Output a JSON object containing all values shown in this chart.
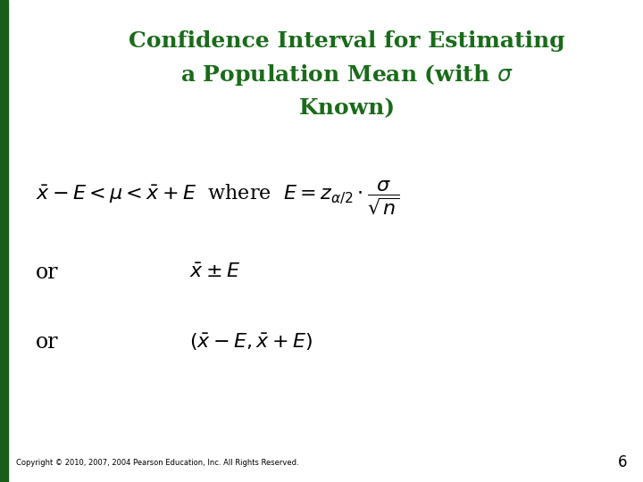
{
  "title_line1": "Confidence Interval for Estimating",
  "title_line2": "a Population Mean (with $\\sigma$",
  "title_line3": "Known)",
  "title_color": "#1a6b1a",
  "bg_color": "#ffffff",
  "left_bar_color": "#1a5c1a",
  "copyright": "Copyright © 2010, 2007, 2004 Pearson Education, Inc. All Rights Reserved.",
  "page_number": "6",
  "title_fontsize": 18,
  "formula_fontsize": 16,
  "or_fontsize": 17,
  "copyright_fontsize": 6
}
